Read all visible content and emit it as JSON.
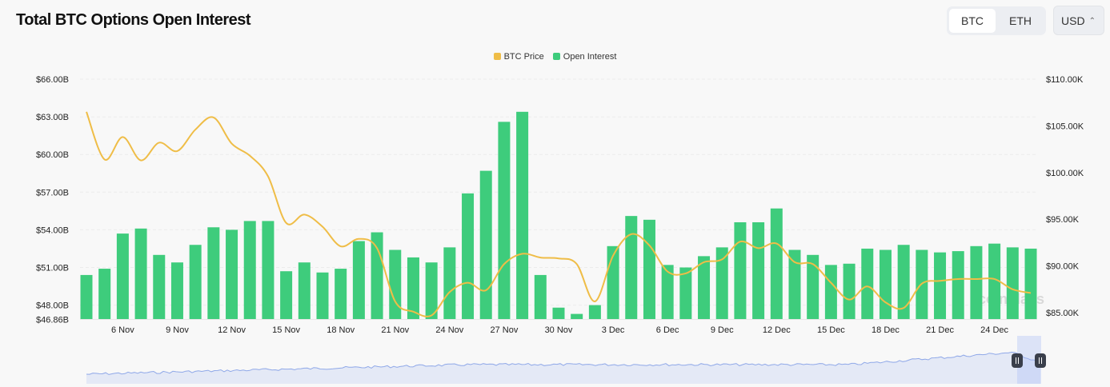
{
  "header": {
    "title": "Total BTC Options Open Interest",
    "asset_tabs": [
      "BTC",
      "ETH"
    ],
    "active_asset": "BTC",
    "currency": "USD",
    "currency_icon": "chevron-up-down-icon"
  },
  "watermark": "coinglass",
  "colors": {
    "open_interest": "#3ecc7c",
    "btc_price": "#efbd47",
    "navigator": "#8fa8e8"
  },
  "chart_data": {
    "type": "bar+line",
    "legend": {
      "position": "top",
      "items": [
        "BTC Price",
        "Open Interest"
      ]
    },
    "grid": true,
    "x_tick_labels": [
      "6 Nov",
      "9 Nov",
      "12 Nov",
      "15 Nov",
      "18 Nov",
      "21 Nov",
      "24 Nov",
      "27 Nov",
      "30 Nov",
      "3 Dec",
      "6 Dec",
      "9 Dec",
      "12 Dec",
      "15 Dec",
      "18 Dec",
      "21 Dec",
      "24 Dec"
    ],
    "left_axis": {
      "ticks": [
        "$66.00B",
        "$63.00B",
        "$60.00B",
        "$57.00B",
        "$54.00B",
        "$51.00B",
        "$48.00B",
        "$46.86B"
      ],
      "ylim": [
        46.86,
        66
      ]
    },
    "right_axis": {
      "ticks": [
        "$110.00K",
        "$105.00K",
        "$100.00K",
        "$95.00K",
        "$90.00K",
        "$85.00K"
      ],
      "ylim": [
        84.2,
        110
      ]
    },
    "x": [
      "4 Nov",
      "5 Nov",
      "6 Nov",
      "7 Nov",
      "8 Nov",
      "9 Nov",
      "10 Nov",
      "11 Nov",
      "12 Nov",
      "13 Nov",
      "14 Nov",
      "15 Nov",
      "16 Nov",
      "17 Nov",
      "18 Nov",
      "19 Nov",
      "20 Nov",
      "21 Nov",
      "22 Nov",
      "23 Nov",
      "24 Nov",
      "25 Nov",
      "26 Nov",
      "27 Nov",
      "28 Nov",
      "29 Nov",
      "30 Nov",
      "1 Dec",
      "2 Dec",
      "3 Dec",
      "4 Dec",
      "5 Dec",
      "6 Dec",
      "7 Dec",
      "8 Dec",
      "9 Dec",
      "10 Dec",
      "11 Dec",
      "12 Dec",
      "13 Dec",
      "14 Dec",
      "15 Dec",
      "16 Dec",
      "17 Dec",
      "18 Dec",
      "19 Dec",
      "20 Dec",
      "21 Dec",
      "22 Dec",
      "23 Dec",
      "24 Dec",
      "25 Dec",
      "26 Dec"
    ],
    "series": [
      {
        "name": "Open Interest",
        "type": "bar",
        "axis": "left",
        "unit": "B USD",
        "values": [
          50.4,
          50.9,
          53.7,
          54.1,
          52.0,
          51.4,
          52.8,
          54.2,
          54.0,
          54.7,
          54.7,
          50.7,
          51.4,
          50.6,
          50.9,
          53.1,
          53.8,
          52.4,
          51.8,
          51.4,
          52.6,
          56.9,
          58.7,
          62.6,
          63.4,
          50.4,
          47.8,
          47.3,
          48.0,
          52.7,
          55.1,
          54.8,
          51.2,
          51.0,
          51.9,
          52.6,
          54.6,
          54.6,
          55.7,
          52.4,
          52.0,
          51.2,
          51.3,
          52.5,
          52.4,
          52.8,
          52.4,
          52.2,
          52.3,
          52.7,
          52.9,
          52.6,
          52.5
        ]
      },
      {
        "name": "BTC Price",
        "type": "line",
        "axis": "right",
        "unit": "K USD",
        "values": [
          106.5,
          101.4,
          103.8,
          101.3,
          103.2,
          102.3,
          104.6,
          105.9,
          103.1,
          101.8,
          99.6,
          94.6,
          95.5,
          94.2,
          92.1,
          92.9,
          91.9,
          86.2,
          85.1,
          84.7,
          87.2,
          88.2,
          87.4,
          90.2,
          91.3,
          90.9,
          90.8,
          90.2,
          86.2,
          91.1,
          93.4,
          92.2,
          89.4,
          89.2,
          90.4,
          90.7,
          92.6,
          91.9,
          92.4,
          90.4,
          90.2,
          88.2,
          86.4,
          87.8,
          86.1,
          85.5,
          88.1,
          88.4,
          88.6,
          88.6,
          88.6,
          87.5,
          87.1
        ]
      }
    ]
  }
}
